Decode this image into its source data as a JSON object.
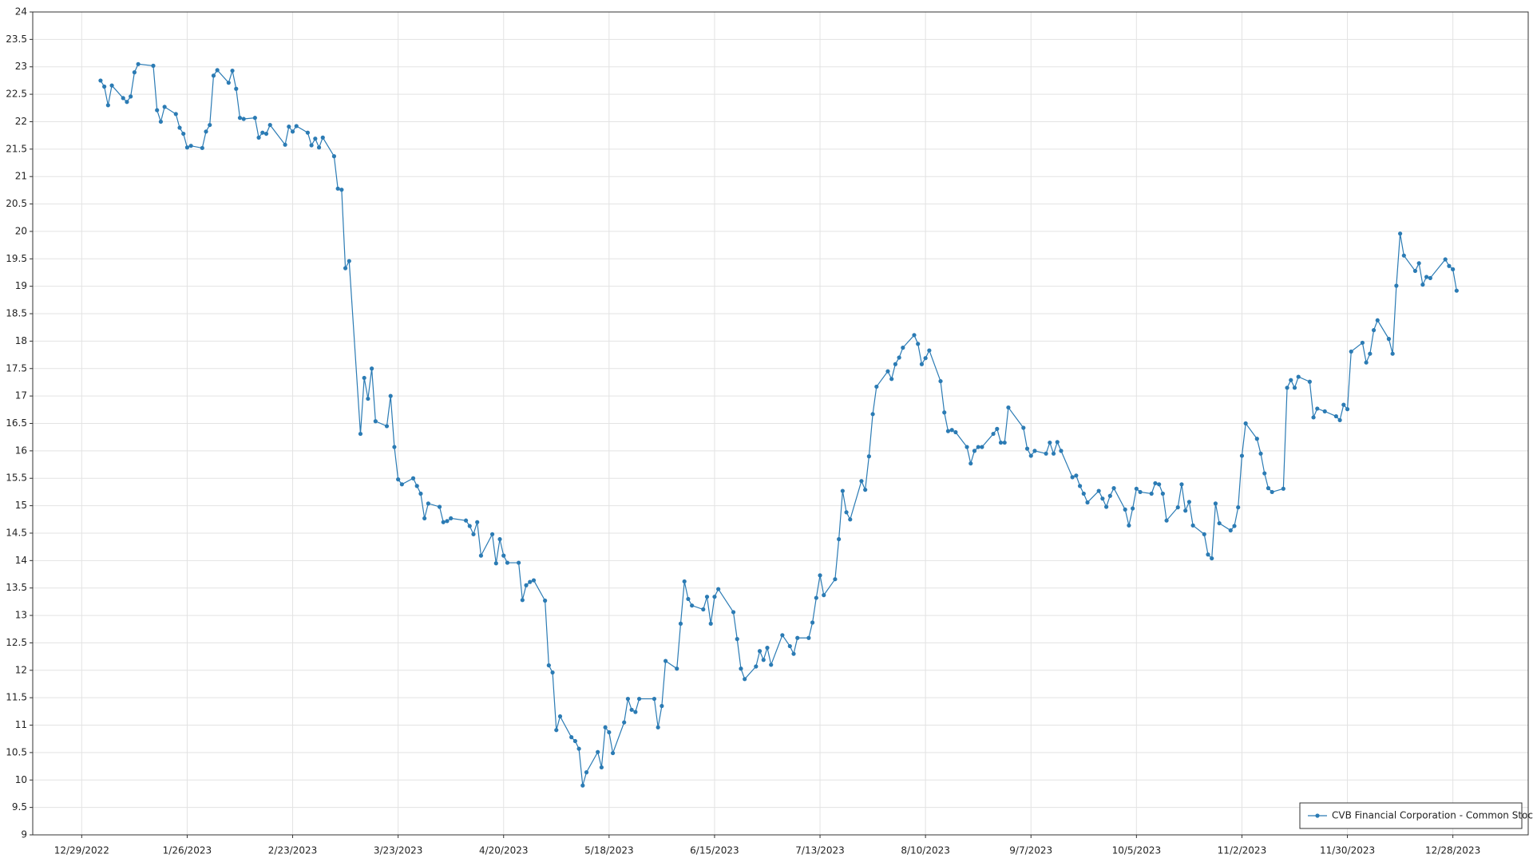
{
  "chart_data": {
    "type": "line",
    "xlim": [
      "12/16/2022",
      "1/17/2024"
    ],
    "xticks": [
      "12/29/2022",
      "1/26/2023",
      "2/23/2023",
      "3/23/2023",
      "4/20/2023",
      "5/18/2023",
      "6/15/2023",
      "7/13/2023",
      "8/10/2023",
      "9/7/2023",
      "10/5/2023",
      "11/2/2023",
      "11/30/2023",
      "12/28/2023"
    ],
    "ylim": [
      9,
      24
    ],
    "yticks": [
      9,
      9.5,
      10,
      10.5,
      11,
      11.5,
      12,
      12.5,
      13,
      13.5,
      14,
      14.5,
      15,
      15.5,
      16,
      16.5,
      17,
      17.5,
      18,
      18.5,
      19,
      19.5,
      20,
      20.5,
      21,
      21.5,
      22,
      22.5,
      23,
      23.5,
      24
    ],
    "grid": true,
    "legend": "bottom-right",
    "x": [
      "1/3/2023",
      "1/4/2023",
      "1/5/2023",
      "1/6/2023",
      "1/9/2023",
      "1/10/2023",
      "1/11/2023",
      "1/12/2023",
      "1/13/2023",
      "1/17/2023",
      "1/18/2023",
      "1/19/2023",
      "1/20/2023",
      "1/23/2023",
      "1/24/2023",
      "1/25/2023",
      "1/26/2023",
      "1/27/2023",
      "1/30/2023",
      "1/31/2023",
      "2/1/2023",
      "2/2/2023",
      "2/3/2023",
      "2/6/2023",
      "2/7/2023",
      "2/8/2023",
      "2/9/2023",
      "2/10/2023",
      "2/13/2023",
      "2/14/2023",
      "2/15/2023",
      "2/16/2023",
      "2/17/2023",
      "2/21/2023",
      "2/22/2023",
      "2/23/2023",
      "2/24/2023",
      "2/27/2023",
      "2/28/2023",
      "3/1/2023",
      "3/2/2023",
      "3/3/2023",
      "3/6/2023",
      "3/7/2023",
      "3/8/2023",
      "3/9/2023",
      "3/10/2023",
      "3/13/2023",
      "3/14/2023",
      "3/15/2023",
      "3/16/2023",
      "3/17/2023",
      "3/20/2023",
      "3/21/2023",
      "3/22/2023",
      "3/23/2023",
      "3/24/2023",
      "3/27/2023",
      "3/28/2023",
      "3/29/2023",
      "3/30/2023",
      "3/31/2023",
      "4/3/2023",
      "4/4/2023",
      "4/5/2023",
      "4/6/2023",
      "4/10/2023",
      "4/11/2023",
      "4/12/2023",
      "4/13/2023",
      "4/14/2023",
      "4/17/2023",
      "4/18/2023",
      "4/19/2023",
      "4/20/2023",
      "4/21/2023",
      "4/24/2023",
      "4/25/2023",
      "4/26/2023",
      "4/27/2023",
      "4/28/2023",
      "5/1/2023",
      "5/2/2023",
      "5/3/2023",
      "5/4/2023",
      "5/5/2023",
      "5/8/2023",
      "5/9/2023",
      "5/10/2023",
      "5/11/2023",
      "5/12/2023",
      "5/15/2023",
      "5/16/2023",
      "5/17/2023",
      "5/18/2023",
      "5/19/2023",
      "5/22/2023",
      "5/23/2023",
      "5/24/2023",
      "5/25/2023",
      "5/26/2023",
      "5/30/2023",
      "5/31/2023",
      "6/1/2023",
      "6/2/2023",
      "6/5/2023",
      "6/6/2023",
      "6/7/2023",
      "6/8/2023",
      "6/9/2023",
      "6/12/2023",
      "6/13/2023",
      "6/14/2023",
      "6/15/2023",
      "6/16/2023",
      "6/20/2023",
      "6/21/2023",
      "6/22/2023",
      "6/23/2023",
      "6/26/2023",
      "6/27/2023",
      "6/28/2023",
      "6/29/2023",
      "6/30/2023",
      "7/3/2023",
      "7/5/2023",
      "7/6/2023",
      "7/7/2023",
      "7/10/2023",
      "7/11/2023",
      "7/12/2023",
      "7/13/2023",
      "7/14/2023",
      "7/17/2023",
      "7/18/2023",
      "7/19/2023",
      "7/20/2023",
      "7/21/2023",
      "7/24/2023",
      "7/25/2023",
      "7/26/2023",
      "7/27/2023",
      "7/28/2023",
      "7/31/2023",
      "8/1/2023",
      "8/2/2023",
      "8/3/2023",
      "8/4/2023",
      "8/7/2023",
      "8/8/2023",
      "8/9/2023",
      "8/10/2023",
      "8/11/2023",
      "8/14/2023",
      "8/15/2023",
      "8/16/2023",
      "8/17/2023",
      "8/18/2023",
      "8/21/2023",
      "8/22/2023",
      "8/23/2023",
      "8/24/2023",
      "8/25/2023",
      "8/28/2023",
      "8/29/2023",
      "8/30/2023",
      "8/31/2023",
      "9/1/2023",
      "9/5/2023",
      "9/6/2023",
      "9/7/2023",
      "9/8/2023",
      "9/11/2023",
      "9/12/2023",
      "9/13/2023",
      "9/14/2023",
      "9/15/2023",
      "9/18/2023",
      "9/19/2023",
      "9/20/2023",
      "9/21/2023",
      "9/22/2023",
      "9/25/2023",
      "9/26/2023",
      "9/27/2023",
      "9/28/2023",
      "9/29/2023",
      "10/2/2023",
      "10/3/2023",
      "10/4/2023",
      "10/5/2023",
      "10/6/2023",
      "10/9/2023",
      "10/10/2023",
      "10/11/2023",
      "10/12/2023",
      "10/13/2023",
      "10/16/2023",
      "10/17/2023",
      "10/18/2023",
      "10/19/2023",
      "10/20/2023",
      "10/23/2023",
      "10/24/2023",
      "10/25/2023",
      "10/26/2023",
      "10/27/2023",
      "10/30/2023",
      "10/31/2023",
      "11/1/2023",
      "11/2/2023",
      "11/3/2023",
      "11/6/2023",
      "11/7/2023",
      "11/8/2023",
      "11/9/2023",
      "11/10/2023",
      "11/13/2023",
      "11/14/2023",
      "11/15/2023",
      "11/16/2023",
      "11/17/2023",
      "11/20/2023",
      "11/21/2023",
      "11/22/2023",
      "11/24/2023",
      "11/27/2023",
      "11/28/2023",
      "11/29/2023",
      "11/30/2023",
      "12/1/2023",
      "12/4/2023",
      "12/5/2023",
      "12/6/2023",
      "12/7/2023",
      "12/8/2023",
      "12/11/2023",
      "12/12/2023",
      "12/13/2023",
      "12/14/2023",
      "12/15/2023",
      "12/18/2023",
      "12/19/2023",
      "12/20/2023",
      "12/21/2023",
      "12/22/2023",
      "12/26/2023",
      "12/27/2023",
      "12/28/2023",
      "12/29/2023"
    ],
    "series": [
      {
        "name": "CVB Financial Corporation - Common Stock",
        "color": "#2b7bb4",
        "values": [
          22.75,
          22.64,
          22.3,
          22.66,
          22.43,
          22.36,
          22.46,
          22.9,
          23.05,
          23.02,
          22.21,
          22.0,
          22.27,
          22.14,
          21.89,
          21.78,
          21.53,
          21.56,
          21.52,
          21.82,
          21.94,
          22.84,
          22.94,
          22.71,
          22.93,
          22.6,
          22.07,
          22.05,
          22.07,
          21.71,
          21.8,
          21.78,
          21.94,
          21.58,
          21.91,
          21.82,
          21.92,
          21.8,
          21.57,
          21.69,
          21.53,
          21.71,
          21.37,
          20.78,
          20.76,
          19.33,
          19.46,
          16.31,
          17.33,
          16.95,
          17.5,
          16.54,
          16.45,
          17.0,
          16.07,
          15.48,
          15.39,
          15.5,
          15.36,
          15.22,
          14.77,
          15.04,
          14.98,
          14.7,
          14.72,
          14.77,
          14.73,
          14.63,
          14.48,
          14.7,
          14.09,
          14.48,
          13.95,
          14.39,
          14.09,
          13.96,
          13.96,
          13.28,
          13.55,
          13.61,
          13.64,
          13.27,
          12.09,
          11.96,
          10.91,
          11.16,
          10.78,
          10.71,
          10.57,
          9.9,
          10.14,
          10.51,
          10.23,
          10.96,
          10.87,
          10.49,
          11.05,
          11.48,
          11.28,
          11.24,
          11.48,
          11.48,
          10.96,
          11.35,
          12.17,
          12.03,
          12.85,
          13.62,
          13.3,
          13.18,
          13.11,
          13.34,
          12.85,
          13.34,
          13.48,
          13.06,
          12.57,
          12.03,
          11.84,
          12.07,
          12.35,
          12.19,
          12.41,
          12.1,
          12.64,
          12.44,
          12.3,
          12.59,
          12.59,
          12.87,
          13.32,
          13.73,
          13.37,
          13.66,
          14.39,
          15.27,
          14.88,
          14.75,
          15.45,
          15.29,
          15.9,
          16.67,
          17.17,
          17.45,
          17.31,
          17.58,
          17.7,
          17.88,
          18.11,
          17.95,
          17.58,
          17.69,
          17.83,
          17.27,
          16.7,
          16.36,
          16.38,
          16.34,
          16.07,
          15.77,
          16.0,
          16.07,
          16.07,
          16.31,
          16.4,
          16.15,
          16.15,
          16.79,
          16.42,
          16.04,
          15.91,
          16.0,
          15.95,
          16.15,
          15.95,
          16.16,
          16.0,
          15.52,
          15.55,
          15.36,
          15.22,
          15.06,
          15.27,
          15.13,
          14.98,
          15.18,
          15.32,
          14.93,
          14.64,
          14.95,
          15.31,
          15.25,
          15.22,
          15.41,
          15.39,
          15.22,
          14.73,
          14.97,
          15.39,
          14.91,
          15.07,
          14.64,
          14.48,
          14.11,
          14.04,
          15.04,
          14.68,
          14.55,
          14.63,
          14.97,
          15.91,
          16.5,
          16.22,
          15.95,
          15.59,
          15.32,
          15.25,
          15.31,
          17.15,
          17.29,
          17.15,
          17.35,
          17.26,
          16.61,
          16.77,
          16.72,
          16.63,
          16.56,
          16.84,
          16.76,
          17.81,
          17.97,
          17.61,
          17.77,
          18.2,
          18.38,
          18.04,
          17.77,
          19.01,
          19.96,
          19.56,
          19.28,
          19.42,
          19.03,
          19.17,
          19.15,
          19.49,
          19.37,
          19.31,
          18.92
        ]
      }
    ]
  }
}
